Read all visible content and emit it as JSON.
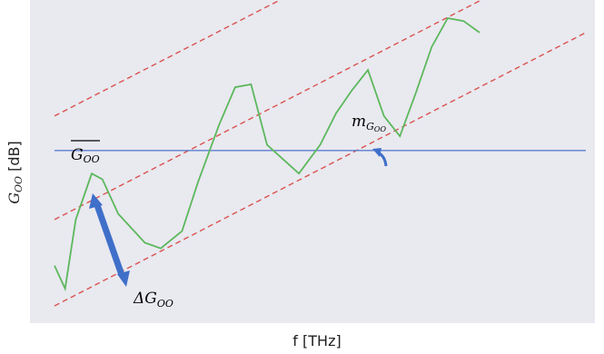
{
  "chart_data": {
    "type": "line",
    "xlabel": "f [THz]",
    "ylabel_main": "G",
    "ylabel_sub": "OO",
    "ylabel_unit": " [dB]",
    "grid": false,
    "colors": {
      "background": "#e9e9f0",
      "signal": "#5cb85c",
      "mean_line": "#5b7fd1",
      "trend_lines": "#d9534f",
      "arrow": "#3f6fc9"
    },
    "series": [
      {
        "values": [
          [
            0.0,
            0.14
          ],
          [
            0.02,
            0.06
          ],
          [
            0.04,
            0.3
          ],
          [
            0.07,
            0.46
          ],
          [
            0.09,
            0.44
          ],
          [
            0.12,
            0.32
          ],
          [
            0.17,
            0.22
          ],
          [
            0.2,
            0.2
          ],
          [
            0.24,
            0.26
          ],
          [
            0.27,
            0.43
          ],
          [
            0.31,
            0.63
          ],
          [
            0.34,
            0.76
          ],
          [
            0.37,
            0.77
          ],
          [
            0.4,
            0.56
          ],
          [
            0.43,
            0.51
          ],
          [
            0.46,
            0.46
          ],
          [
            0.5,
            0.56
          ],
          [
            0.53,
            0.67
          ],
          [
            0.56,
            0.75
          ],
          [
            0.59,
            0.82
          ],
          [
            0.62,
            0.66
          ],
          [
            0.65,
            0.59
          ],
          [
            0.68,
            0.74
          ],
          [
            0.71,
            0.9
          ],
          [
            0.74,
            1.0
          ],
          [
            0.77,
            0.99
          ],
          [
            0.8,
            0.95
          ]
        ]
      }
    ],
    "mean_level": 0.54,
    "trend": {
      "slope": 0.95,
      "offsets": [
        0.36,
        0.0,
        -0.3
      ]
    },
    "annotations": {
      "mean": {
        "main": "G",
        "sub": "OO"
      },
      "slope": {
        "main": "m",
        "sub_main": "G",
        "sub_sub": "OO"
      },
      "delta": {
        "main": "ΔG",
        "sub": "OO"
      }
    }
  }
}
